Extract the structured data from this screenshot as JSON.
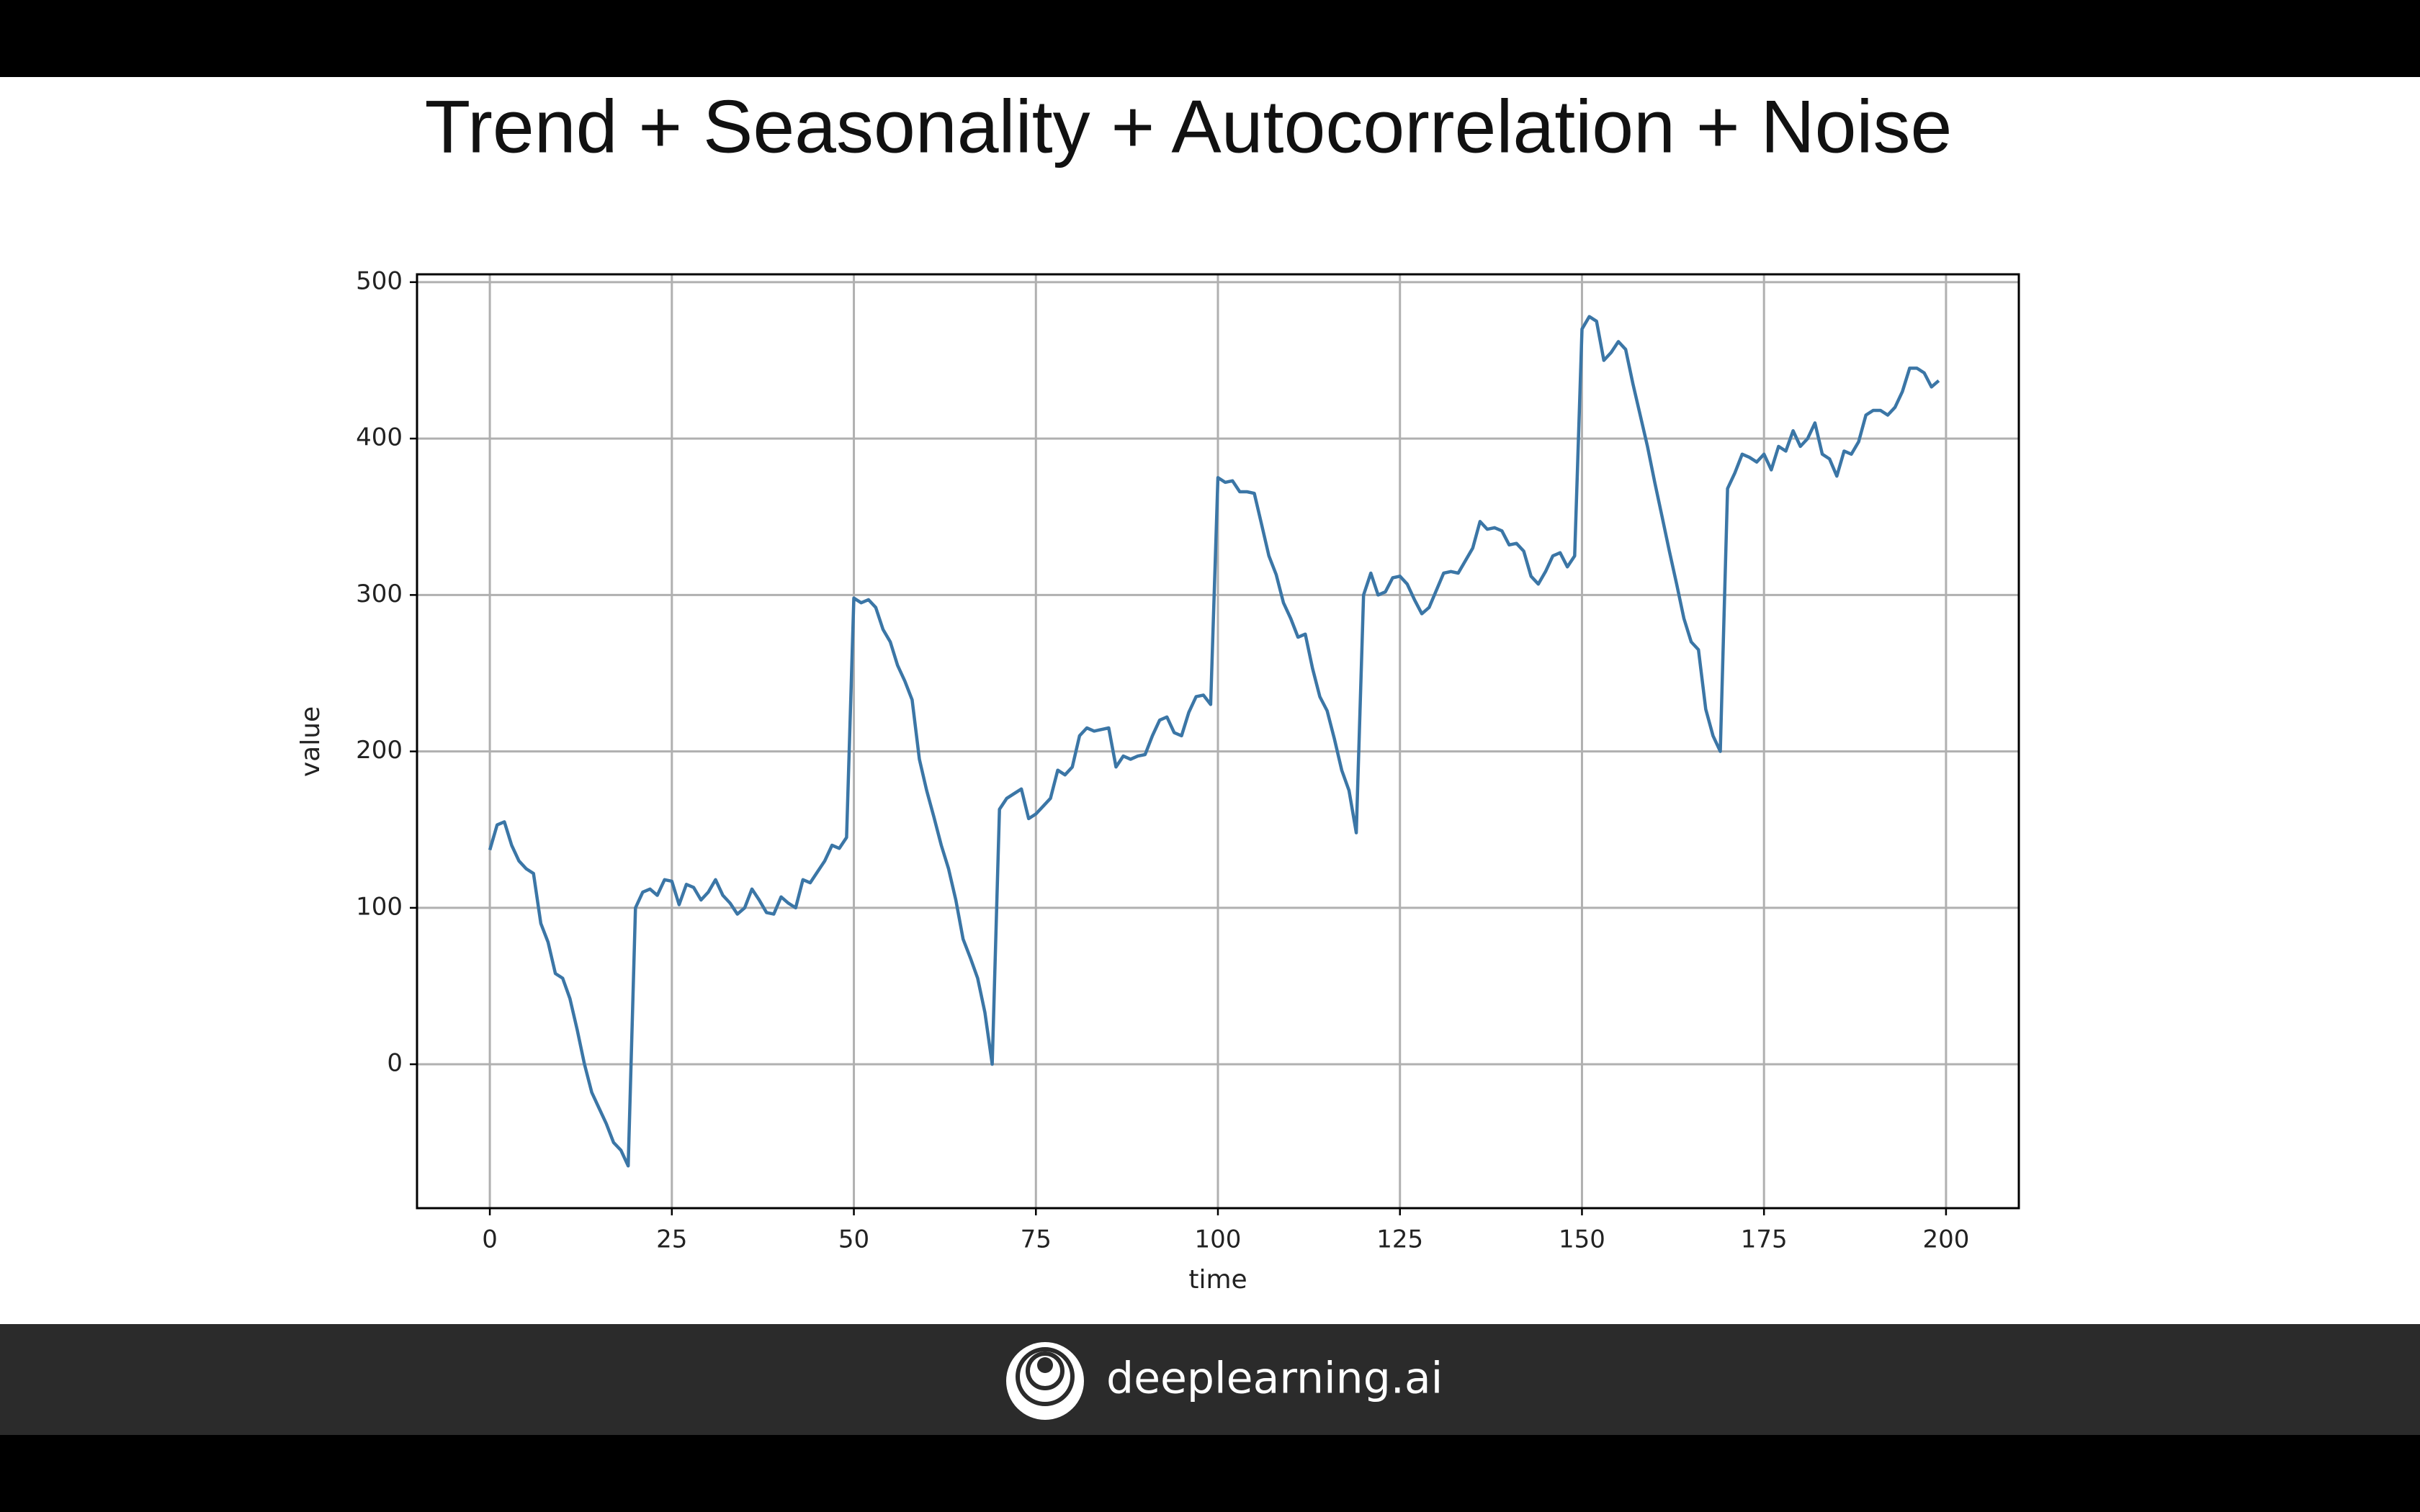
{
  "chart_data": {
    "type": "line",
    "title": "Trend + Seasonality + Autocorrelation + Noise",
    "x_label": "time",
    "y_label": "value",
    "color": "#3b76a6",
    "grid": true,
    "xlim": [
      -10,
      210
    ],
    "xticks": [
      0,
      25,
      50,
      75,
      100,
      125,
      150,
      175,
      200
    ],
    "ylim": [
      -92,
      505
    ],
    "yticks": [
      0,
      100,
      200,
      300,
      400,
      500
    ],
    "x": [
      0,
      1,
      2,
      3,
      4,
      5,
      6,
      7,
      8,
      9,
      10,
      11,
      12,
      13,
      14,
      15,
      16,
      17,
      18,
      19,
      20,
      21,
      22,
      23,
      24,
      25,
      26,
      27,
      28,
      29,
      30,
      31,
      32,
      33,
      34,
      35,
      36,
      37,
      38,
      39,
      40,
      41,
      42,
      43,
      44,
      45,
      46,
      47,
      48,
      49,
      50,
      51,
      52,
      53,
      54,
      55,
      56,
      57,
      58,
      59,
      60,
      61,
      62,
      63,
      64,
      65,
      66,
      67,
      68,
      69,
      70,
      71,
      72,
      73,
      74,
      75,
      76,
      77,
      78,
      79,
      80,
      81,
      82,
      83,
      84,
      85,
      86,
      87,
      88,
      89,
      90,
      91,
      92,
      93,
      94,
      95,
      96,
      97,
      98,
      99,
      100,
      101,
      102,
      103,
      104,
      105,
      106,
      107,
      108,
      109,
      110,
      111,
      112,
      113,
      114,
      115,
      116,
      117,
      118,
      119,
      120,
      121,
      122,
      123,
      124,
      125,
      126,
      127,
      128,
      129,
      130,
      131,
      132,
      133,
      134,
      135,
      136,
      137,
      138,
      139,
      140,
      141,
      142,
      143,
      144,
      145,
      146,
      147,
      148,
      149,
      150,
      151,
      152,
      153,
      154,
      155,
      156,
      157,
      158,
      159,
      160,
      161,
      162,
      163,
      164,
      165,
      166,
      167,
      168,
      169,
      170,
      171,
      172,
      173,
      174,
      175,
      176,
      177,
      178,
      179,
      180,
      181,
      182,
      183,
      184,
      185,
      186,
      187,
      188,
      189,
      190,
      191,
      192,
      193,
      194,
      195,
      196,
      197,
      198,
      199
    ],
    "values": [
      137,
      153,
      155,
      140,
      130,
      125,
      122,
      90,
      78,
      58,
      55,
      42,
      22,
      0,
      -18,
      -28,
      -38,
      -50,
      -55,
      -65,
      100,
      110,
      112,
      108,
      118,
      117,
      102,
      115,
      113,
      105,
      110,
      118,
      108,
      103,
      96,
      100,
      112,
      105,
      97,
      96,
      107,
      103,
      100,
      118,
      116,
      123,
      130,
      140,
      138,
      145,
      298,
      295,
      297,
      292,
      278,
      270,
      255,
      245,
      233,
      195,
      175,
      158,
      140,
      125,
      105,
      80,
      68,
      55,
      33,
      0,
      163,
      170,
      173,
      176,
      157,
      160,
      165,
      170,
      188,
      185,
      190,
      210,
      215,
      213,
      214,
      215,
      190,
      197,
      195,
      197,
      198,
      210,
      220,
      222,
      212,
      210,
      225,
      235,
      236,
      230,
      375,
      372,
      373,
      366,
      366,
      365,
      345,
      325,
      313,
      295,
      285,
      273,
      275,
      253,
      235,
      226,
      208,
      188,
      175,
      148,
      300,
      314,
      300,
      302,
      311,
      312,
      307,
      297,
      288,
      292,
      303,
      314,
      315,
      314,
      322,
      330,
      347,
      342,
      343,
      341,
      332,
      333,
      328,
      312,
      307,
      315,
      325,
      327,
      318,
      325,
      470,
      478,
      475,
      450,
      455,
      462,
      457,
      435,
      415,
      395,
      372,
      350,
      328,
      307,
      285,
      270,
      265,
      227,
      210,
      200,
      368,
      378,
      390,
      388,
      385,
      390,
      380,
      395,
      392,
      405,
      395,
      400,
      410,
      390,
      387,
      376,
      392,
      390,
      398,
      415,
      418,
      418,
      415,
      420,
      430,
      445,
      445,
      442,
      433,
      437
    ]
  },
  "footer": {
    "brand": "deeplearning.ai"
  }
}
